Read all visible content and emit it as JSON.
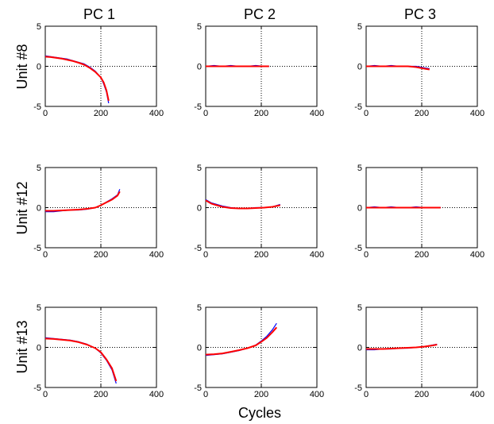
{
  "figure": {
    "column_titles": [
      "PC 1",
      "PC 2",
      "PC 3"
    ],
    "row_titles": [
      "Unit #8",
      "Unit #12",
      "Unit #13"
    ],
    "xlabel": "Cycles",
    "colors": {
      "raw": "#0000ff",
      "smoothed": "#ff0000",
      "axes": "#000000",
      "grid": "#000000"
    }
  },
  "chart_data": [
    {
      "type": "line",
      "row": "Unit #8",
      "column": "PC 1",
      "xlim": [
        0,
        400
      ],
      "ylim": [
        -5,
        5
      ],
      "xticks": [
        0,
        200,
        400
      ],
      "yticks": [
        -5,
        0,
        5
      ],
      "grid": "dotted at x=200 and y=0",
      "series": [
        {
          "role": "raw",
          "color": "#0000ff",
          "x": [
            0,
            20,
            40,
            60,
            80,
            100,
            120,
            140,
            160,
            180,
            200,
            210,
            220,
            228
          ],
          "y": [
            1.3,
            1.2,
            1.1,
            1.0,
            0.9,
            0.7,
            0.5,
            0.3,
            -0.1,
            -0.6,
            -1.4,
            -2.2,
            -3.2,
            -4.6
          ]
        },
        {
          "role": "smoothed",
          "color": "#ff0000",
          "x": [
            0,
            20,
            40,
            60,
            80,
            100,
            120,
            140,
            160,
            180,
            200,
            210,
            220,
            228
          ],
          "y": [
            1.2,
            1.15,
            1.05,
            0.95,
            0.8,
            0.65,
            0.45,
            0.2,
            -0.2,
            -0.7,
            -1.4,
            -2.0,
            -3.0,
            -4.3
          ]
        }
      ]
    },
    {
      "type": "line",
      "row": "Unit #8",
      "column": "PC 2",
      "xlim": [
        0,
        400
      ],
      "ylim": [
        -5,
        5
      ],
      "xticks": [
        0,
        200,
        400
      ],
      "yticks": [
        -5,
        0,
        5
      ],
      "grid": "dotted at x=200 and y=0",
      "series": [
        {
          "role": "raw",
          "color": "#0000ff",
          "x": [
            0,
            30,
            60,
            90,
            120,
            150,
            180,
            210,
            228
          ],
          "y": [
            0,
            0.1,
            0,
            0.1,
            0,
            0,
            0.1,
            0,
            0
          ]
        },
        {
          "role": "smoothed",
          "color": "#ff0000",
          "x": [
            0,
            30,
            60,
            90,
            120,
            150,
            180,
            210,
            228
          ],
          "y": [
            0,
            0,
            0,
            0,
            0,
            0,
            0,
            0,
            0
          ]
        }
      ]
    },
    {
      "type": "line",
      "row": "Unit #8",
      "column": "PC 3",
      "xlim": [
        0,
        400
      ],
      "ylim": [
        -5,
        5
      ],
      "xticks": [
        0,
        200,
        400
      ],
      "yticks": [
        -5,
        0,
        5
      ],
      "grid": "dotted at x=200 and y=0",
      "series": [
        {
          "role": "raw",
          "color": "#0000ff",
          "x": [
            0,
            30,
            60,
            90,
            120,
            150,
            180,
            210,
            228
          ],
          "y": [
            0,
            0.1,
            0,
            0.1,
            0,
            0,
            0,
            -0.2,
            -0.3
          ]
        },
        {
          "role": "smoothed",
          "color": "#ff0000",
          "x": [
            0,
            30,
            60,
            90,
            120,
            150,
            180,
            210,
            228
          ],
          "y": [
            0,
            0,
            0,
            0,
            0,
            0,
            -0.1,
            -0.3,
            -0.4
          ]
        }
      ]
    },
    {
      "type": "line",
      "row": "Unit #12",
      "column": "PC 1",
      "xlim": [
        0,
        400
      ],
      "ylim": [
        -5,
        5
      ],
      "xticks": [
        0,
        200,
        400
      ],
      "yticks": [
        -5,
        0,
        5
      ],
      "grid": "dotted at x=200 and y=0",
      "series": [
        {
          "role": "raw",
          "color": "#0000ff",
          "x": [
            0,
            30,
            60,
            90,
            120,
            150,
            180,
            200,
            220,
            240,
            260,
            268
          ],
          "y": [
            -0.5,
            -0.5,
            -0.4,
            -0.3,
            -0.3,
            -0.2,
            0,
            0.3,
            0.7,
            1.1,
            1.6,
            2.3
          ]
        },
        {
          "role": "smoothed",
          "color": "#ff0000",
          "x": [
            0,
            30,
            60,
            90,
            120,
            150,
            180,
            200,
            220,
            240,
            260,
            268
          ],
          "y": [
            -0.4,
            -0.4,
            -0.35,
            -0.3,
            -0.25,
            -0.15,
            0,
            0.3,
            0.65,
            1.0,
            1.5,
            2.0
          ]
        }
      ]
    },
    {
      "type": "line",
      "row": "Unit #12",
      "column": "PC 2",
      "xlim": [
        0,
        400
      ],
      "ylim": [
        -5,
        5
      ],
      "xticks": [
        0,
        200,
        400
      ],
      "yticks": [
        -5,
        0,
        5
      ],
      "grid": "dotted at x=200 and y=0",
      "series": [
        {
          "role": "raw",
          "color": "#0000ff",
          "x": [
            0,
            10,
            20,
            40,
            60,
            90,
            120,
            150,
            180,
            210,
            240,
            268
          ],
          "y": [
            1.0,
            0.8,
            0.6,
            0.4,
            0.2,
            0,
            -0.1,
            -0.1,
            0,
            0,
            0.1,
            0.4
          ]
        },
        {
          "role": "smoothed",
          "color": "#ff0000",
          "x": [
            0,
            10,
            20,
            40,
            60,
            90,
            120,
            150,
            180,
            210,
            240,
            268
          ],
          "y": [
            0.9,
            0.7,
            0.5,
            0.3,
            0.1,
            -0.05,
            -0.1,
            -0.1,
            -0.05,
            0,
            0.1,
            0.3
          ]
        }
      ]
    },
    {
      "type": "line",
      "row": "Unit #12",
      "column": "PC 3",
      "xlim": [
        0,
        400
      ],
      "ylim": [
        -5,
        5
      ],
      "xticks": [
        0,
        200,
        400
      ],
      "yticks": [
        -5,
        0,
        5
      ],
      "grid": "dotted at x=200 and y=0",
      "series": [
        {
          "role": "raw",
          "color": "#0000ff",
          "x": [
            0,
            30,
            60,
            90,
            120,
            150,
            180,
            210,
            240,
            268
          ],
          "y": [
            0,
            0.1,
            0,
            0.1,
            0,
            0,
            0.1,
            0,
            0,
            0
          ]
        },
        {
          "role": "smoothed",
          "color": "#ff0000",
          "x": [
            0,
            30,
            60,
            90,
            120,
            150,
            180,
            210,
            240,
            268
          ],
          "y": [
            0,
            0,
            0,
            0,
            0,
            0,
            0,
            0,
            0,
            0
          ]
        }
      ]
    },
    {
      "type": "line",
      "row": "Unit #13",
      "column": "PC 1",
      "xlim": [
        0,
        400
      ],
      "ylim": [
        -5,
        5
      ],
      "xticks": [
        0,
        200,
        400
      ],
      "yticks": [
        -5,
        0,
        5
      ],
      "grid": "dotted at x=200 and y=0",
      "series": [
        {
          "role": "raw",
          "color": "#0000ff",
          "x": [
            0,
            30,
            60,
            90,
            120,
            150,
            180,
            200,
            220,
            240,
            255
          ],
          "y": [
            1.2,
            1.1,
            1.0,
            0.9,
            0.7,
            0.4,
            -0.1,
            -0.7,
            -1.6,
            -2.8,
            -4.5
          ]
        },
        {
          "role": "smoothed",
          "color": "#ff0000",
          "x": [
            0,
            30,
            60,
            90,
            120,
            150,
            180,
            200,
            220,
            240,
            255
          ],
          "y": [
            1.1,
            1.05,
            0.95,
            0.85,
            0.65,
            0.35,
            -0.1,
            -0.6,
            -1.5,
            -2.6,
            -4.2
          ]
        }
      ]
    },
    {
      "type": "line",
      "row": "Unit #13",
      "column": "PC 2",
      "xlim": [
        0,
        400
      ],
      "ylim": [
        -5,
        5
      ],
      "xticks": [
        0,
        200,
        400
      ],
      "yticks": [
        -5,
        0,
        5
      ],
      "grid": "dotted at x=200 and y=0",
      "series": [
        {
          "role": "raw",
          "color": "#0000ff",
          "x": [
            0,
            30,
            60,
            90,
            120,
            150,
            180,
            200,
            220,
            240,
            255
          ],
          "y": [
            -1.0,
            -0.9,
            -0.8,
            -0.6,
            -0.4,
            -0.1,
            0.3,
            0.8,
            1.4,
            2.2,
            3.0
          ]
        },
        {
          "role": "smoothed",
          "color": "#ff0000",
          "x": [
            0,
            30,
            60,
            90,
            120,
            150,
            180,
            200,
            220,
            240,
            255
          ],
          "y": [
            -0.9,
            -0.85,
            -0.75,
            -0.55,
            -0.35,
            -0.1,
            0.25,
            0.7,
            1.2,
            1.9,
            2.5
          ]
        }
      ]
    },
    {
      "type": "line",
      "row": "Unit #13",
      "column": "PC 3",
      "xlim": [
        0,
        400
      ],
      "ylim": [
        -5,
        5
      ],
      "xticks": [
        0,
        200,
        400
      ],
      "yticks": [
        -5,
        0,
        5
      ],
      "grid": "dotted at x=200 and y=0",
      "series": [
        {
          "role": "raw",
          "color": "#0000ff",
          "x": [
            0,
            30,
            60,
            90,
            120,
            150,
            180,
            210,
            240,
            255
          ],
          "y": [
            -0.3,
            -0.3,
            -0.2,
            -0.2,
            -0.1,
            -0.1,
            0,
            0.1,
            0.3,
            0.4
          ]
        },
        {
          "role": "smoothed",
          "color": "#ff0000",
          "x": [
            0,
            30,
            60,
            90,
            120,
            150,
            180,
            210,
            240,
            255
          ],
          "y": [
            -0.2,
            -0.2,
            -0.2,
            -0.15,
            -0.1,
            -0.05,
            0,
            0.1,
            0.25,
            0.35
          ]
        }
      ]
    }
  ]
}
